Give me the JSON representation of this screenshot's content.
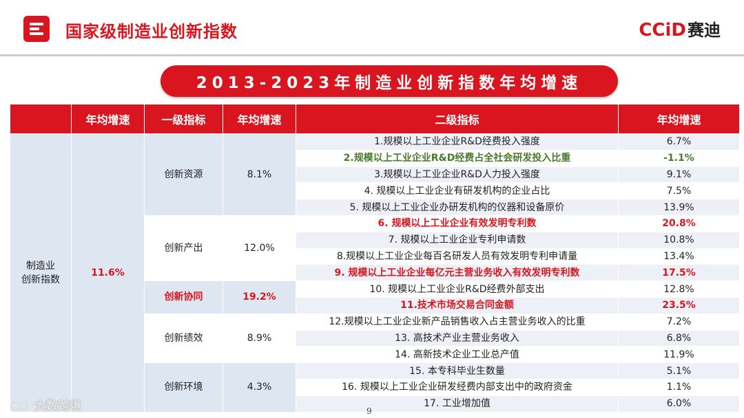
{
  "header": {
    "title": "国家级制造业创新指数",
    "logo_text": "CCiD",
    "logo_cn": "赛迪"
  },
  "banner": "2013-2023年制造业创新指数年均增速",
  "table": {
    "headers": [
      "",
      "年均增速",
      "一级指标",
      "年均增速",
      "二级指标",
      "年均增速"
    ],
    "root_name": "制造业\n创新指数",
    "root_rate": "11.6%",
    "groups": [
      {
        "name": "创新资源",
        "rate": "8.1%",
        "highlight": false
      },
      {
        "name": "创新产出",
        "rate": "12.0%",
        "highlight": false
      },
      {
        "name": "创新协同",
        "rate": "19.2%",
        "highlight": true
      },
      {
        "name": "创新绩效",
        "rate": "8.9%",
        "highlight": false
      },
      {
        "name": "创新环境",
        "rate": "4.3%",
        "highlight": false
      }
    ],
    "rows": [
      {
        "label": "1.规模以上工业企业R&D经费投入强度",
        "rate": "6.7%",
        "style": ""
      },
      {
        "label": "2.规模以上工业企业R&D经费占全社会研发投入比重",
        "rate": "-1.1%",
        "style": "green"
      },
      {
        "label": "3.规模以上工业企业R&D人力投入强度",
        "rate": "9.1%",
        "style": ""
      },
      {
        "label": "4. 规模以上工业企业有研发机构的企业占比",
        "rate": "7.5%",
        "style": ""
      },
      {
        "label": "5. 规模以上工业企业办研发机构的仪器和设备原价",
        "rate": "13.9%",
        "style": ""
      },
      {
        "label": "6. 规模以上工业企业有效发明专利数",
        "rate": "20.8%",
        "style": "red"
      },
      {
        "label": "7. 规模以上工业企业专利申请数",
        "rate": "10.8%",
        "style": ""
      },
      {
        "label": "8.规模以上工业企业每百名研发人员有效发明专利申请量",
        "rate": "13.4%",
        "style": ""
      },
      {
        "label": "9. 规模以上工业企业每亿元主营业务收入有效发明专利数",
        "rate": "17.5%",
        "style": "red"
      },
      {
        "label": "10. 规模以上工业企业R&D经费外部支出",
        "rate": "12.8%",
        "style": ""
      },
      {
        "label": "11.技术市场交易合同金额",
        "rate": "23.5%",
        "style": "red"
      },
      {
        "label": "12.规模以上工业企业新产品销售收入占主营业务收入的比重",
        "rate": "7.2%",
        "style": ""
      },
      {
        "label": "13. 高技术产业主营业务收入",
        "rate": "6.8%",
        "style": ""
      },
      {
        "label": "14. 高新技术企业工业总产值",
        "rate": "11.9%",
        "style": ""
      },
      {
        "label": "15. 本专科毕业生数量",
        "rate": "5.1%",
        "style": ""
      },
      {
        "label": "16. 规模以上工业企业研发经费内部支出中的政府资金",
        "rate": "1.1%",
        "style": ""
      },
      {
        "label": "17. 工业增加值",
        "rate": "6.0%",
        "style": ""
      }
    ]
  },
  "footer": {
    "page_number": "9",
    "watermark": "大数跨境"
  },
  "colors": {
    "accent": "#d9161f",
    "band": "#dde6f1",
    "green": "#4a7a2a"
  }
}
